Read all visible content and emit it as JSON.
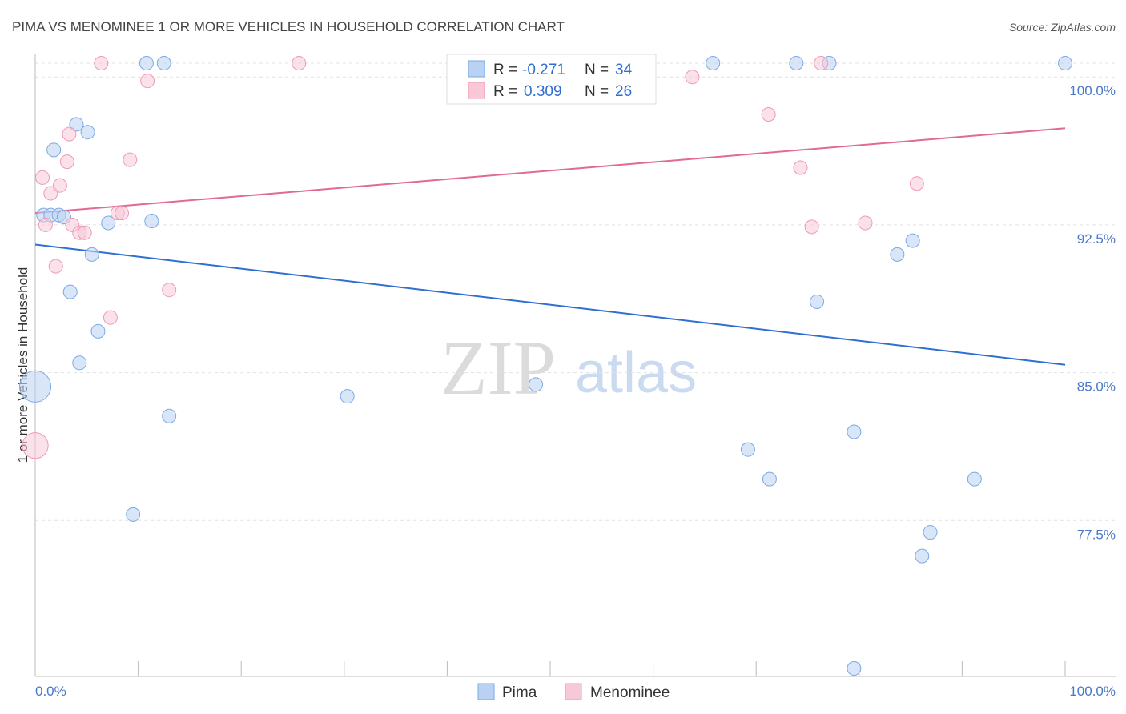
{
  "chart_data": {
    "type": "scatter",
    "title": "PIMA VS MENOMINEE 1 OR MORE VEHICLES IN HOUSEHOLD CORRELATION CHART",
    "source": "Source: ZipAtlas.com",
    "xlabel": "",
    "ylabel": "1 or more Vehicles in Household",
    "xlim": [
      0,
      100
    ],
    "ylim": [
      70.0,
      100.7
    ],
    "x_tick_labels": [
      "0.0%",
      "100.0%"
    ],
    "y_ticks": [
      77.5,
      85.0,
      92.5,
      100.0
    ],
    "y_tick_labels": [
      "77.5%",
      "85.0%",
      "92.5%",
      "100.0%"
    ],
    "grid": true,
    "watermark": {
      "zip": "ZIP",
      "atlas": "atlas"
    },
    "legend": {
      "position": "top-center",
      "rows": [
        {
          "series": "Pima",
          "r_label": "R =",
          "r_value": "-0.271",
          "n_label": "N =",
          "n_value": "34"
        },
        {
          "series": "Menominee",
          "r_label": "R =",
          "r_value": "0.309",
          "n_label": "N =",
          "n_value": "26"
        }
      ]
    },
    "series": [
      {
        "name": "Pima",
        "color": "#7aaae6",
        "fill": "#b9d2f3",
        "line_color": "#2f6fd1",
        "trend": {
          "x": [
            0,
            100
          ],
          "y": [
            91.5,
            85.4
          ]
        },
        "points": [
          {
            "x": 0.8,
            "y": 93.0,
            "s": 1
          },
          {
            "x": 1.5,
            "y": 93.0,
            "s": 1
          },
          {
            "x": 1.8,
            "y": 96.3,
            "s": 1
          },
          {
            "x": 2.3,
            "y": 93.0,
            "s": 1
          },
          {
            "x": 2.8,
            "y": 92.9,
            "s": 1
          },
          {
            "x": 3.4,
            "y": 89.1,
            "s": 1
          },
          {
            "x": 4.0,
            "y": 97.6,
            "s": 1
          },
          {
            "x": 4.3,
            "y": 85.5,
            "s": 1
          },
          {
            "x": 5.1,
            "y": 97.2,
            "s": 1
          },
          {
            "x": 5.5,
            "y": 91.0,
            "s": 1
          },
          {
            "x": 6.1,
            "y": 87.1,
            "s": 1
          },
          {
            "x": 7.1,
            "y": 92.6,
            "s": 1
          },
          {
            "x": 9.5,
            "y": 77.8,
            "s": 1
          },
          {
            "x": 10.8,
            "y": 100.7,
            "s": 1
          },
          {
            "x": 11.3,
            "y": 92.7,
            "s": 1
          },
          {
            "x": 12.5,
            "y": 100.7,
            "s": 1
          },
          {
            "x": 13.0,
            "y": 82.8,
            "s": 1
          },
          {
            "x": 30.3,
            "y": 83.8,
            "s": 1
          },
          {
            "x": 48.6,
            "y": 84.4,
            "s": 1
          },
          {
            "x": 65.8,
            "y": 100.7,
            "s": 1
          },
          {
            "x": 69.2,
            "y": 81.1,
            "s": 1
          },
          {
            "x": 71.3,
            "y": 79.6,
            "s": 1
          },
          {
            "x": 73.9,
            "y": 100.7,
            "s": 1
          },
          {
            "x": 75.9,
            "y": 88.6,
            "s": 1
          },
          {
            "x": 77.1,
            "y": 100.7,
            "s": 1
          },
          {
            "x": 79.5,
            "y": 70.0,
            "s": 1
          },
          {
            "x": 79.5,
            "y": 82.0,
            "s": 1
          },
          {
            "x": 83.7,
            "y": 91.0,
            "s": 1
          },
          {
            "x": 85.2,
            "y": 91.7,
            "s": 1
          },
          {
            "x": 86.1,
            "y": 75.7,
            "s": 1
          },
          {
            "x": 86.9,
            "y": 76.9,
            "s": 1
          },
          {
            "x": 91.2,
            "y": 79.6,
            "s": 1
          },
          {
            "x": 100.0,
            "y": 100.7,
            "s": 1
          },
          {
            "x": 0.0,
            "y": 84.3,
            "s": 2.3
          }
        ]
      },
      {
        "name": "Menominee",
        "color": "#f09ab4",
        "fill": "#f8c8d7",
        "line_color": "#e06a90",
        "trend": {
          "x": [
            0,
            100
          ],
          "y": [
            93.1,
            97.4
          ]
        },
        "points": [
          {
            "x": 0.7,
            "y": 94.9,
            "s": 1
          },
          {
            "x": 1.0,
            "y": 92.5,
            "s": 1
          },
          {
            "x": 1.5,
            "y": 94.1,
            "s": 1
          },
          {
            "x": 2.0,
            "y": 90.4,
            "s": 1
          },
          {
            "x": 2.4,
            "y": 94.5,
            "s": 1
          },
          {
            "x": 3.1,
            "y": 95.7,
            "s": 1
          },
          {
            "x": 3.3,
            "y": 97.1,
            "s": 1
          },
          {
            "x": 3.6,
            "y": 92.5,
            "s": 1
          },
          {
            "x": 4.3,
            "y": 92.1,
            "s": 1
          },
          {
            "x": 4.8,
            "y": 92.1,
            "s": 1
          },
          {
            "x": 6.4,
            "y": 100.7,
            "s": 1
          },
          {
            "x": 7.3,
            "y": 87.8,
            "s": 1
          },
          {
            "x": 8.0,
            "y": 93.1,
            "s": 1
          },
          {
            "x": 8.4,
            "y": 93.1,
            "s": 1
          },
          {
            "x": 9.2,
            "y": 95.8,
            "s": 1
          },
          {
            "x": 10.9,
            "y": 99.8,
            "s": 1
          },
          {
            "x": 13.0,
            "y": 89.2,
            "s": 1
          },
          {
            "x": 25.6,
            "y": 100.7,
            "s": 1
          },
          {
            "x": 63.8,
            "y": 100.0,
            "s": 1
          },
          {
            "x": 71.2,
            "y": 98.1,
            "s": 1
          },
          {
            "x": 74.3,
            "y": 95.4,
            "s": 1
          },
          {
            "x": 75.4,
            "y": 92.4,
            "s": 1
          },
          {
            "x": 76.3,
            "y": 100.7,
            "s": 1
          },
          {
            "x": 80.6,
            "y": 92.6,
            "s": 1
          },
          {
            "x": 85.6,
            "y": 94.6,
            "s": 1
          },
          {
            "x": 0.0,
            "y": 81.3,
            "s": 1.9
          }
        ]
      }
    ]
  }
}
